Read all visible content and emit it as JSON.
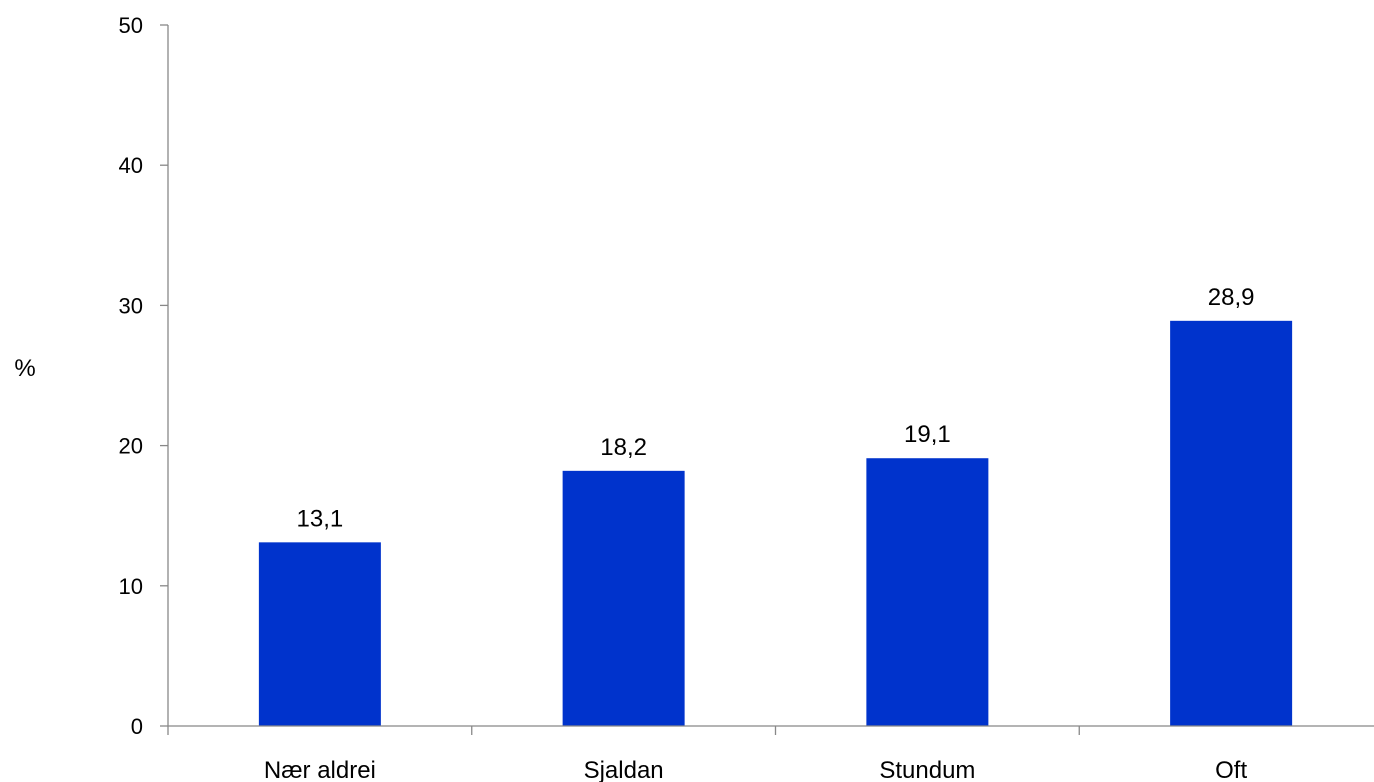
{
  "chart_data": {
    "type": "bar",
    "title": "",
    "xlabel": "",
    "ylabel": "%",
    "categories": [
      "Nær aldrei",
      "Sjaldan",
      "Stundum",
      "Oft"
    ],
    "values": [
      13.1,
      18.2,
      19.1,
      28.9
    ],
    "value_labels": [
      "13,1",
      "18,2",
      "19,1",
      "28,9"
    ],
    "ylim": [
      0,
      50
    ],
    "yticks": [
      0,
      10,
      20,
      30,
      40,
      50
    ],
    "ytick_labels": [
      "0",
      "10",
      "20",
      "30",
      "40",
      "50"
    ],
    "grid": false,
    "legend": "none",
    "bar_color": "#0033CC"
  }
}
